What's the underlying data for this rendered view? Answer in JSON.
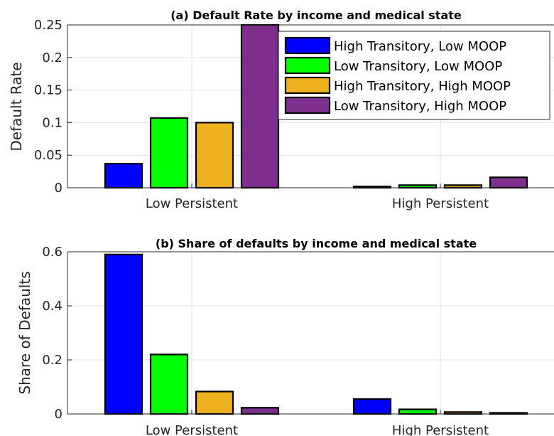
{
  "chart_data": [
    {
      "type": "bar",
      "title": "(a) Default Rate by income and medical state",
      "ylabel": "Default Rate",
      "xlabel": "",
      "categories": [
        "Low Persistent",
        "High Persistent"
      ],
      "ylim": [
        0,
        0.25
      ],
      "yticks": [
        "0",
        "0.05",
        "0.1",
        "0.15",
        "0.2",
        "0.25"
      ],
      "grid": true,
      "legend_position": "top-right",
      "series": [
        {
          "name": "High Transitory, Low MOOP",
          "color": "#0000ff",
          "values": [
            0.037,
            0.002
          ]
        },
        {
          "name": "Low Transitory, Low MOOP",
          "color": "#00ff00",
          "values": [
            0.107,
            0.004
          ]
        },
        {
          "name": "High Transitory, High MOOP",
          "color": "#edb120",
          "values": [
            0.1,
            0.004
          ]
        },
        {
          "name": "Low Transitory, High MOOP",
          "color": "#7e2f8e",
          "values": [
            0.25,
            0.016
          ]
        }
      ]
    },
    {
      "type": "bar",
      "title": "(b) Share of defaults by income and medical state",
      "ylabel": "Share of Defaults",
      "xlabel": "",
      "categories": [
        "Low Persistent",
        "High Persistent"
      ],
      "ylim": [
        0,
        0.6
      ],
      "yticks": [
        "0",
        "0.2",
        "0.4",
        "0.6"
      ],
      "grid": true,
      "series": [
        {
          "color": "#0000ff",
          "values": [
            0.59,
            0.055
          ]
        },
        {
          "color": "#00ff00",
          "values": [
            0.22,
            0.017
          ]
        },
        {
          "color": "#edb120",
          "values": [
            0.083,
            0.007
          ]
        },
        {
          "color": "#7e2f8e",
          "values": [
            0.023,
            0.004
          ]
        }
      ]
    }
  ]
}
